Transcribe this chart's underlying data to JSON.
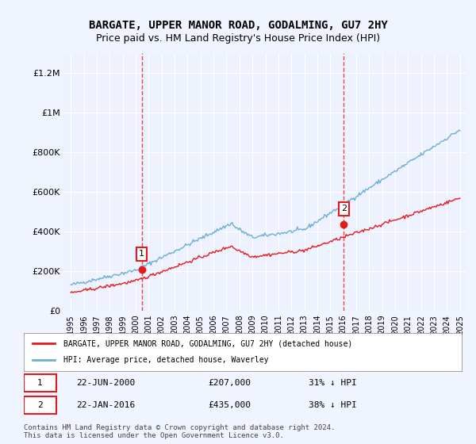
{
  "title": "BARGATE, UPPER MANOR ROAD, GODALMING, GU7 2HY",
  "subtitle": "Price paid vs. HM Land Registry's House Price Index (HPI)",
  "legend_line1": "BARGATE, UPPER MANOR ROAD, GODALMING, GU7 2HY (detached house)",
  "legend_line2": "HPI: Average price, detached house, Waverley",
  "sale1_date": "22-JUN-2000",
  "sale1_price": "£207,000",
  "sale1_hpi": "31% ↓ HPI",
  "sale2_date": "22-JAN-2016",
  "sale2_price": "£435,000",
  "sale2_hpi": "38% ↓ HPI",
  "footer": "Contains HM Land Registry data © Crown copyright and database right 2024.\nThis data is licensed under the Open Government Licence v3.0.",
  "sale1_year": 2000.47,
  "sale2_year": 2016.05,
  "sale1_value": 207000,
  "sale2_value": 435000,
  "hpi_color": "#6baed6",
  "price_color": "#e41a1c",
  "vline_color": "#e41a1c",
  "background_color": "#f0f4ff",
  "plot_bg_color": "#eef2ff",
  "ylim": [
    0,
    1300000
  ],
  "xlim_start": 1994.5,
  "xlim_end": 2025.5
}
